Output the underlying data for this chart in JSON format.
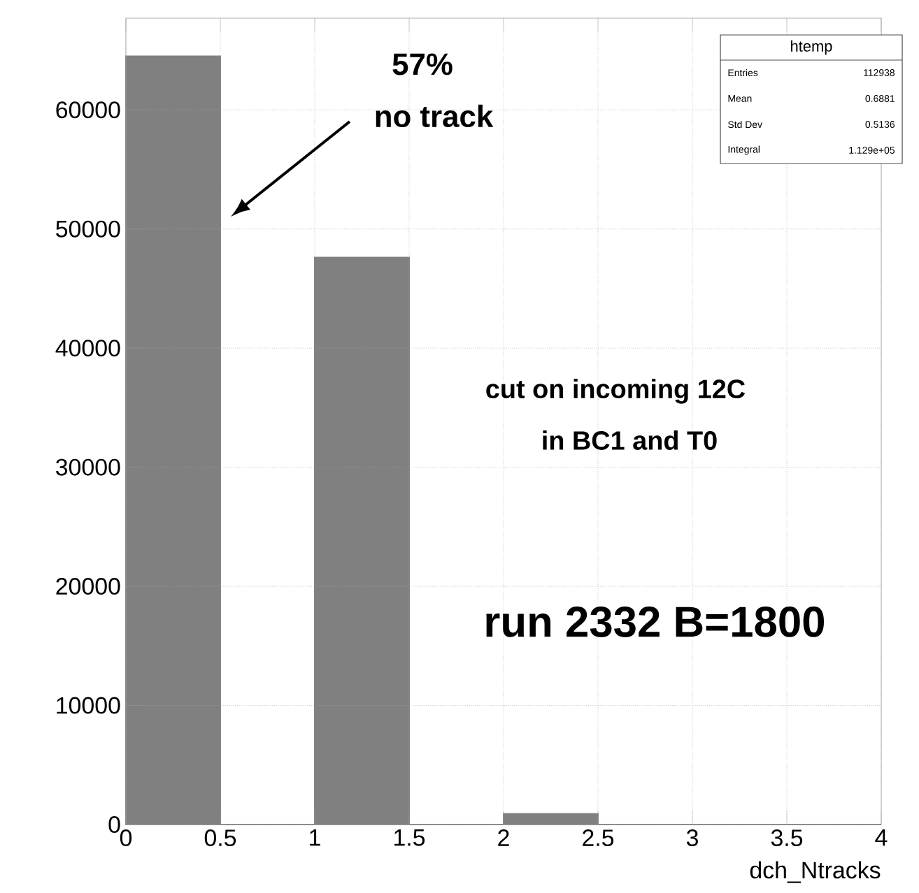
{
  "chart_data": {
    "type": "histogram",
    "xlabel": "dch_Ntracks",
    "bins": [
      0,
      0.5,
      1,
      1.5,
      2,
      2.5,
      3,
      3.5,
      4
    ],
    "values": [
      64500,
      0,
      47600,
      0,
      900,
      0,
      0,
      0
    ],
    "color": "#808080",
    "xlim": [
      0,
      4
    ],
    "ylim": [
      0,
      67700
    ],
    "xticks": [
      0,
      0.5,
      1,
      1.5,
      2,
      2.5,
      3,
      3.5,
      4
    ],
    "yticks": [
      0,
      10000,
      20000,
      30000,
      40000,
      50000,
      60000
    ],
    "grid": true,
    "annotations": [
      "57%",
      "no track",
      "cut on incoming 12C",
      "in BC1 and T0",
      "run 2332 B=1800",
      "htemp",
      "Entries",
      "112938",
      "Mean",
      "0.6881",
      "Std Dev",
      "0.5136",
      "Integral",
      "1.129e+05"
    ]
  }
}
